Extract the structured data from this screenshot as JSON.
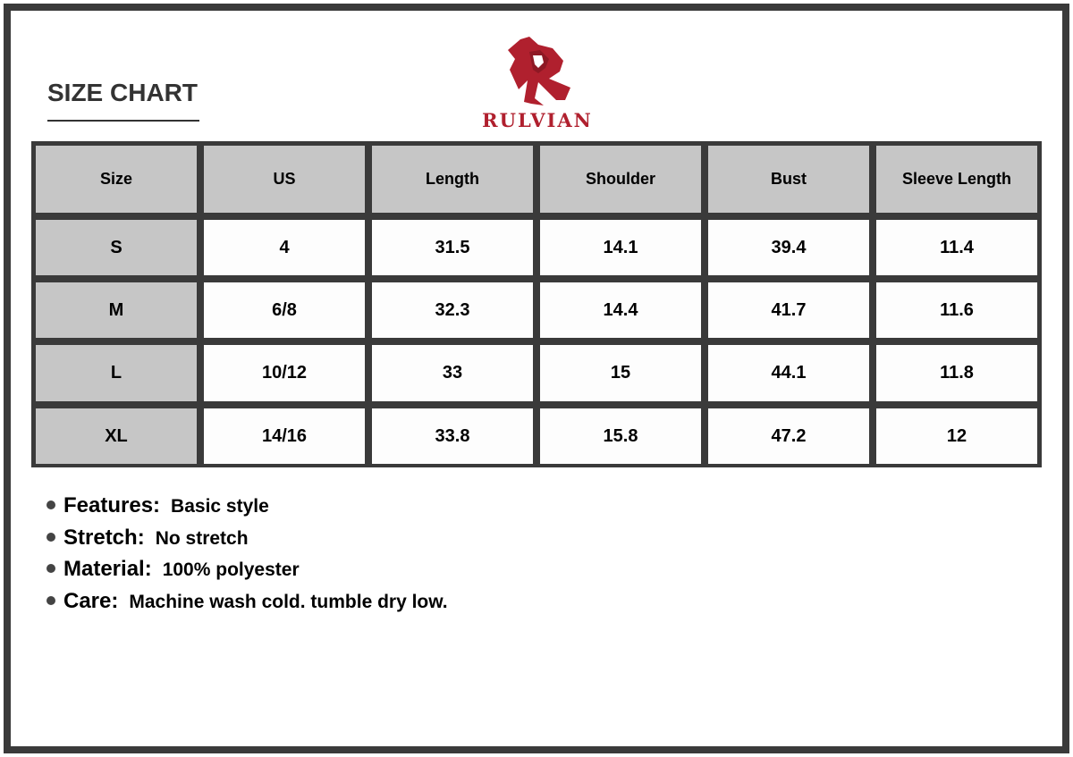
{
  "title": "SIZE CHART",
  "brand": {
    "name": "RULVIAN",
    "color": "#b0202e"
  },
  "table": {
    "headers": [
      "Size",
      "US",
      "Length",
      "Shoulder",
      "Bust",
      "Sleeve Length"
    ],
    "rows": [
      [
        "S",
        "4",
        "31.5",
        "14.1",
        "39.4",
        "11.4"
      ],
      [
        "M",
        "6/8",
        "32.3",
        "14.4",
        "41.7",
        "11.6"
      ],
      [
        "L",
        "10/12",
        "33",
        "15",
        "44.1",
        "11.8"
      ],
      [
        "XL",
        "14/16",
        "33.8",
        "15.8",
        "47.2",
        "12"
      ]
    ]
  },
  "details": [
    {
      "label": "Features:",
      "value": "Basic style"
    },
    {
      "label": "Stretch:",
      "value": "No stretch"
    },
    {
      "label": "Material:",
      "value": "100% polyester"
    },
    {
      "label": "Care:",
      "value": "Machine wash cold. tumble dry low."
    }
  ]
}
